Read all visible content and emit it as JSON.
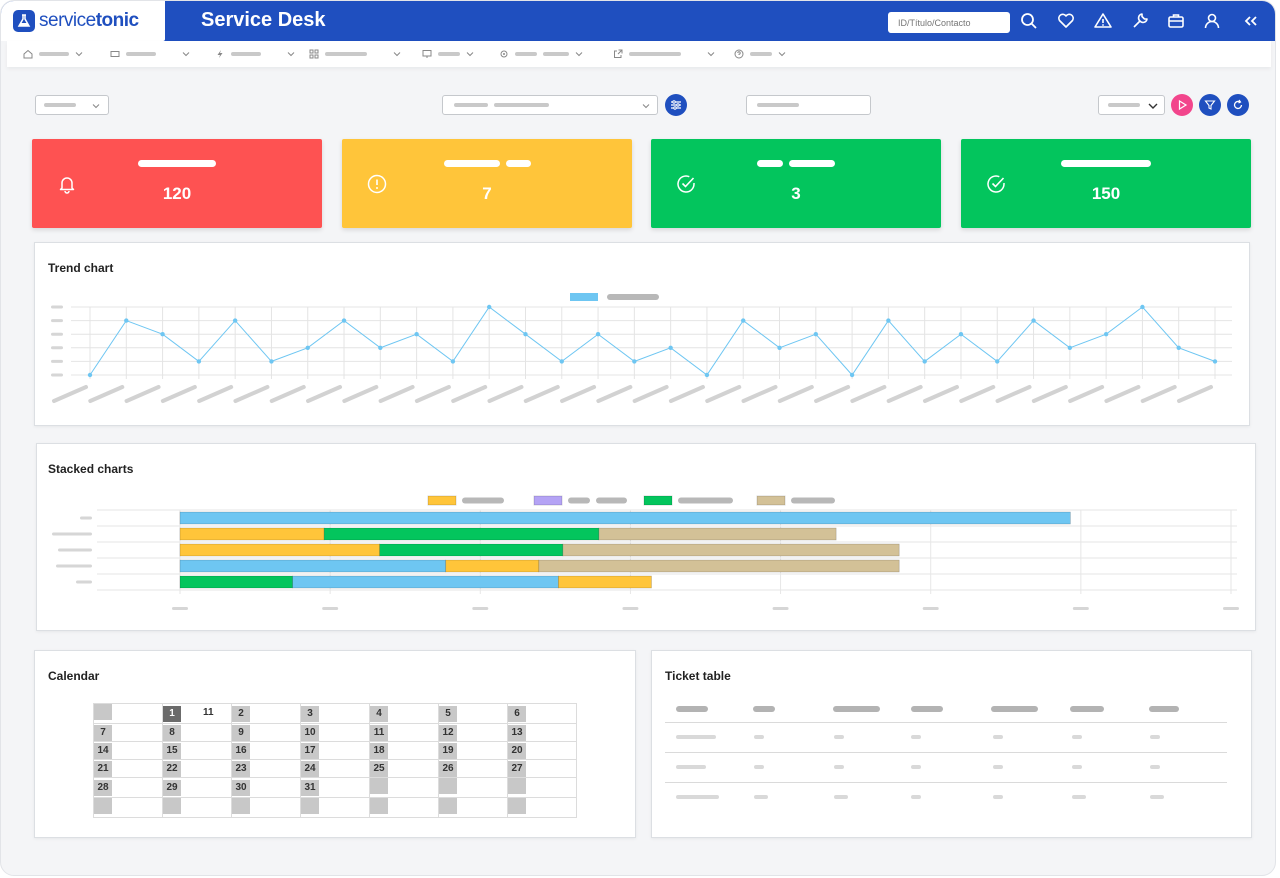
{
  "header": {
    "brand_prefix": "service",
    "brand_suffix": "tonic",
    "app_title": "Service Desk",
    "search_placeholder": "ID/Título/Contacto",
    "icons": [
      "search-icon",
      "heart-icon",
      "warning-icon",
      "wrench-icon",
      "briefcase-icon",
      "user-icon",
      "collapse-icon"
    ]
  },
  "nav": {
    "items": [
      "home-icon",
      "ticket-icon",
      "bolt-icon",
      "grid-icon",
      "monitor-icon",
      "gear-icon",
      "external-link-icon",
      "help-icon"
    ]
  },
  "kpis": [
    {
      "value": "120",
      "color": "#fe5252",
      "icon": "bell-icon"
    },
    {
      "value": "7",
      "color": "#ffc53a",
      "icon": "alert-circle-icon"
    },
    {
      "value": "3",
      "color": "#03c55d",
      "icon": "check-circle-icon"
    },
    {
      "value": "150",
      "color": "#03c55d",
      "icon": "check-circle-icon"
    }
  ],
  "trend": {
    "title": "Trend chart",
    "legend_color": "#6ec6f2"
  },
  "stacked": {
    "title": "Stacked charts",
    "colors": [
      "#ffc53a",
      "#b4a3f5",
      "#03c55d",
      "#d3c197",
      "#6ec6f2"
    ]
  },
  "calendar": {
    "title": "Calendar",
    "today": "1",
    "today_extra": "11",
    "weeks": [
      [
        "",
        "1",
        "2",
        "3",
        "4",
        "5",
        "6"
      ],
      [
        "7",
        "8",
        "9",
        "10",
        "11",
        "12",
        "13"
      ],
      [
        "14",
        "15",
        "16",
        "17",
        "18",
        "19",
        "20"
      ],
      [
        "21",
        "22",
        "23",
        "24",
        "25",
        "26",
        "27"
      ],
      [
        "28",
        "29",
        "30",
        "31",
        "",
        "",
        ""
      ],
      [
        "",
        "",
        "",
        "",
        "",
        "",
        ""
      ]
    ]
  },
  "tickets": {
    "title": "Ticket table"
  },
  "chart_data": [
    {
      "type": "line",
      "title": "Trend chart",
      "x": [
        1,
        2,
        3,
        4,
        5,
        6,
        7,
        8,
        9,
        10,
        11,
        12,
        13,
        14,
        15,
        16,
        17,
        18,
        19,
        20,
        21,
        22,
        23,
        24,
        25,
        26,
        27,
        28,
        29,
        30,
        31,
        32
      ],
      "series": [
        {
          "values": [
            0,
            4,
            3,
            1,
            4,
            1,
            2,
            4,
            2,
            3,
            1,
            5,
            3,
            1,
            3,
            1,
            2,
            0,
            4,
            2,
            3,
            0,
            4,
            1,
            3,
            1,
            4,
            2,
            3,
            5,
            2,
            1
          ]
        }
      ],
      "ylim": [
        0,
        5
      ],
      "grid": true,
      "legend": "top-center"
    },
    {
      "type": "bar",
      "orientation": "horizontal",
      "stacked": true,
      "title": "Stacked charts",
      "xlim": [
        0,
        7
      ],
      "grid": true,
      "legend": "top-center",
      "rows": [
        [
          {
            "color": "#6ec6f2",
            "value": 5.93
          }
        ],
        [
          {
            "color": "#ffc53a",
            "value": 0.96
          },
          {
            "color": "#03c55d",
            "value": 1.83
          },
          {
            "color": "#d3c197",
            "value": 1.58
          }
        ],
        [
          {
            "color": "#ffc53a",
            "value": 1.33
          },
          {
            "color": "#03c55d",
            "value": 1.22
          },
          {
            "color": "#d3c197",
            "value": 2.24
          }
        ],
        [
          {
            "color": "#6ec6f2",
            "value": 1.77
          },
          {
            "color": "#ffc53a",
            "value": 0.62
          },
          {
            "color": "#d3c197",
            "value": 2.4
          }
        ],
        [
          {
            "color": "#03c55d",
            "value": 0.75
          },
          {
            "color": "#6ec6f2",
            "value": 1.77
          },
          {
            "color": "#ffc53a",
            "value": 0.62
          }
        ]
      ]
    }
  ]
}
